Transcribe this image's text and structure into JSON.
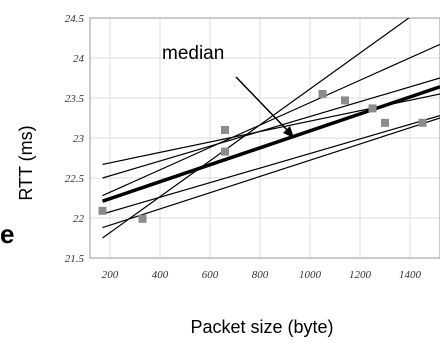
{
  "chart_data": {
    "type": "scatter",
    "title": "",
    "xlabel": "Packet size (byte)",
    "ylabel": "RTT (ms)",
    "xlim": [
      120,
      1520
    ],
    "ylim": [
      21.5,
      24.5
    ],
    "x_ticks": [
      "200",
      "400",
      "600",
      "800",
      "1000",
      "1200",
      "1400"
    ],
    "y_ticks": [
      "21.5",
      "22",
      "22.5",
      "23",
      "23.5",
      "24",
      "24.5"
    ],
    "grid": true,
    "annotation": "median",
    "side_mark": "e",
    "points": [
      {
        "x": 170,
        "y": 22.09
      },
      {
        "x": 330,
        "y": 21.99
      },
      {
        "x": 660,
        "y": 23.1
      },
      {
        "x": 660,
        "y": 22.83
      },
      {
        "x": 1050,
        "y": 23.55
      },
      {
        "x": 1140,
        "y": 23.47
      },
      {
        "x": 1250,
        "y": 23.37
      },
      {
        "x": 1300,
        "y": 23.19
      },
      {
        "x": 1450,
        "y": 23.19
      }
    ],
    "fitted_lines": [
      {
        "from": [
          170,
          21.75
        ],
        "to": [
          1520,
          24.78
        ]
      },
      {
        "from": [
          170,
          22.67
        ],
        "to": [
          1520,
          23.55
        ]
      },
      {
        "from": [
          170,
          22.5
        ],
        "to": [
          1520,
          23.75
        ]
      },
      {
        "from": [
          170,
          22.05
        ],
        "to": [
          1520,
          23.28
        ]
      },
      {
        "from": [
          170,
          21.88
        ],
        "to": [
          1520,
          23.25
        ]
      },
      {
        "from": [
          170,
          22.28
        ],
        "to": [
          1520,
          24.17
        ]
      }
    ],
    "median_line": {
      "from": [
        170,
        22.21
      ],
      "to": [
        1520,
        23.64
      ]
    }
  }
}
